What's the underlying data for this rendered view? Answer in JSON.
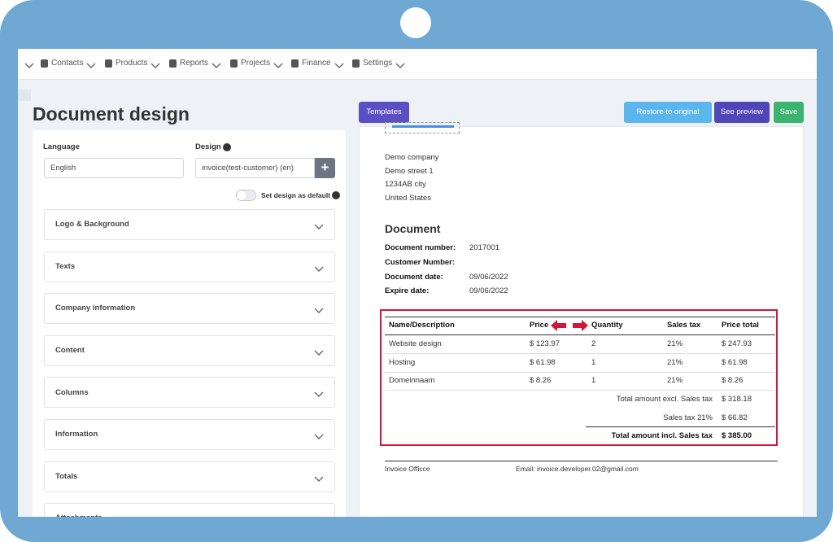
{
  "nav": [
    "Contacts",
    "Products",
    "Reports",
    "Projects",
    "Finance",
    "Settings"
  ],
  "page_title": "Document design",
  "form": {
    "language_label": "Language",
    "language_value": "English",
    "design_label": "Design",
    "design_value": "invoice(test-customer) (en)",
    "default_toggle_label": "Set design as default"
  },
  "sections": [
    "Logo & Background",
    "Texts",
    "Company information",
    "Content",
    "Columns",
    "Information",
    "Totals",
    "Attachments"
  ],
  "buttons": {
    "templates": "Templates",
    "restore": "Restore to original",
    "preview": "See preview",
    "save": "Save"
  },
  "preview": {
    "company": [
      "Demo company",
      "Demo street 1",
      "1234AB city",
      "United States"
    ],
    "document_title": "Document",
    "meta": [
      {
        "label": "Document number:",
        "value": "2017001"
      },
      {
        "label": "Customer Number:"
      },
      {
        "label": "Document date:",
        "value": "09/06/2022"
      },
      {
        "label": "Expire date:",
        "value": "09/06/2022"
      }
    ],
    "table": {
      "headers": [
        "Name/Description",
        "Price",
        "Quantity",
        "Sales tax",
        "Price total"
      ],
      "rows": [
        [
          "Website design",
          "$ 123.97",
          "2",
          "21%",
          "$ 247.93"
        ],
        [
          "Hosting",
          "$ 61.98",
          "1",
          "21%",
          "$ 61.98"
        ],
        [
          "Domeinnaam",
          "$ 8.26",
          "1",
          "21%",
          "$ 8.26"
        ]
      ],
      "totals": [
        [
          "Total amount excl. Sales tax",
          "$ 318.18"
        ],
        [
          "Sales tax 21%",
          "$ 66.82"
        ],
        [
          "Total amount incl. Sales tax",
          "$ 385.00"
        ]
      ]
    },
    "footer": [
      "Invoice Officce",
      "Email: invoice.developer.02@gmail.com"
    ]
  }
}
